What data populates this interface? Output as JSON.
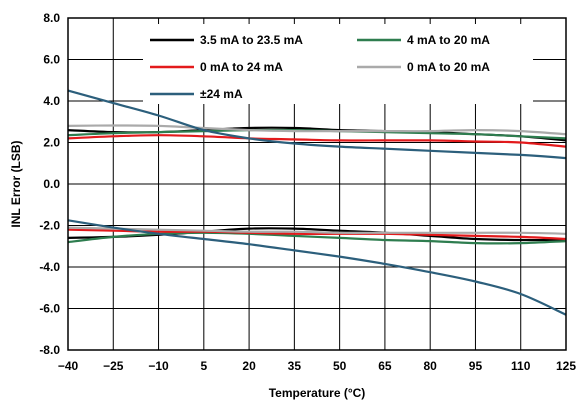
{
  "chart_data": {
    "type": "line",
    "xlabel": "Temperature (°C)",
    "ylabel": "INL Error (LSB)",
    "x_ticks": [
      "−40",
      "−25",
      "−10",
      "5",
      "20",
      "35",
      "50",
      "65",
      "80",
      "95",
      "110",
      "125"
    ],
    "y_ticks": [
      "8.0",
      "6.0",
      "4.0",
      "2.0",
      "0.0",
      "-2.0",
      "-4.0",
      "-6.0",
      "-8.0"
    ],
    "xlim": [
      -40,
      125
    ],
    "ylim": [
      -8,
      8
    ],
    "grid": true,
    "legend_position": "top",
    "series": [
      {
        "name": "3.5 mA to 23.5 mA",
        "color": "#000000",
        "curves": [
          [
            [
              -40,
              2.6
            ],
            [
              -25,
              2.5
            ],
            [
              -10,
              2.5
            ],
            [
              5,
              2.6
            ],
            [
              20,
              2.7
            ],
            [
              35,
              2.7
            ],
            [
              50,
              2.6
            ],
            [
              65,
              2.55
            ],
            [
              80,
              2.5
            ],
            [
              95,
              2.4
            ],
            [
              110,
              2.3
            ],
            [
              125,
              2.1
            ]
          ],
          [
            [
              -40,
              -2.6
            ],
            [
              -25,
              -2.55
            ],
            [
              -10,
              -2.45
            ],
            [
              5,
              -2.3
            ],
            [
              20,
              -2.15
            ],
            [
              35,
              -2.15
            ],
            [
              50,
              -2.25
            ],
            [
              65,
              -2.35
            ],
            [
              80,
              -2.5
            ],
            [
              95,
              -2.65
            ],
            [
              110,
              -2.7
            ],
            [
              125,
              -2.7
            ]
          ]
        ]
      },
      {
        "name": "4 mA to 20 mA",
        "color": "#2e7d4f",
        "curves": [
          [
            [
              -40,
              2.35
            ],
            [
              -25,
              2.45
            ],
            [
              -10,
              2.5
            ],
            [
              5,
              2.55
            ],
            [
              20,
              2.6
            ],
            [
              35,
              2.6
            ],
            [
              50,
              2.55
            ],
            [
              65,
              2.5
            ],
            [
              80,
              2.45
            ],
            [
              95,
              2.4
            ],
            [
              110,
              2.3
            ],
            [
              125,
              2.2
            ]
          ],
          [
            [
              -40,
              -2.8
            ],
            [
              -25,
              -2.55
            ],
            [
              -10,
              -2.4
            ],
            [
              5,
              -2.35
            ],
            [
              20,
              -2.4
            ],
            [
              35,
              -2.5
            ],
            [
              50,
              -2.6
            ],
            [
              65,
              -2.7
            ],
            [
              80,
              -2.75
            ],
            [
              95,
              -2.85
            ],
            [
              110,
              -2.85
            ],
            [
              125,
              -2.75
            ]
          ]
        ]
      },
      {
        "name": "0 mA to 24 mA",
        "color": "#e31a1c",
        "curves": [
          [
            [
              -40,
              2.2
            ],
            [
              -25,
              2.3
            ],
            [
              -10,
              2.35
            ],
            [
              5,
              2.3
            ],
            [
              20,
              2.2
            ],
            [
              35,
              2.15
            ],
            [
              50,
              2.1
            ],
            [
              65,
              2.1
            ],
            [
              80,
              2.1
            ],
            [
              95,
              2.05
            ],
            [
              110,
              2.0
            ],
            [
              125,
              1.8
            ]
          ],
          [
            [
              -40,
              -2.2
            ],
            [
              -25,
              -2.25
            ],
            [
              -10,
              -2.3
            ],
            [
              5,
              -2.3
            ],
            [
              20,
              -2.35
            ],
            [
              35,
              -2.4
            ],
            [
              50,
              -2.4
            ],
            [
              65,
              -2.4
            ],
            [
              80,
              -2.45
            ],
            [
              95,
              -2.5
            ],
            [
              110,
              -2.55
            ],
            [
              125,
              -2.65
            ]
          ]
        ]
      },
      {
        "name": "0 mA to 20 mA",
        "color": "#aaaaaa",
        "curves": [
          [
            [
              -40,
              2.8
            ],
            [
              -25,
              2.82
            ],
            [
              -10,
              2.8
            ],
            [
              5,
              2.7
            ],
            [
              20,
              2.6
            ],
            [
              35,
              2.55
            ],
            [
              50,
              2.55
            ],
            [
              65,
              2.55
            ],
            [
              80,
              2.55
            ],
            [
              95,
              2.6
            ],
            [
              110,
              2.55
            ],
            [
              125,
              2.4
            ]
          ],
          [
            [
              -40,
              -2.1
            ],
            [
              -25,
              -2.15
            ],
            [
              -10,
              -2.2
            ],
            [
              5,
              -2.25
            ],
            [
              20,
              -2.3
            ],
            [
              35,
              -2.3
            ],
            [
              50,
              -2.35
            ],
            [
              65,
              -2.35
            ],
            [
              80,
              -2.35
            ],
            [
              95,
              -2.35
            ],
            [
              110,
              -2.35
            ],
            [
              125,
              -2.4
            ]
          ]
        ]
      },
      {
        "name": "±24 mA",
        "color": "#2c5f7c",
        "curves": [
          [
            [
              -40,
              4.5
            ],
            [
              -25,
              3.9
            ],
            [
              -10,
              3.3
            ],
            [
              5,
              2.6
            ],
            [
              20,
              2.2
            ],
            [
              35,
              1.95
            ],
            [
              50,
              1.8
            ],
            [
              65,
              1.7
            ],
            [
              80,
              1.6
            ],
            [
              95,
              1.5
            ],
            [
              110,
              1.4
            ],
            [
              125,
              1.25
            ]
          ],
          [
            [
              -40,
              -1.75
            ],
            [
              -25,
              -2.1
            ],
            [
              -10,
              -2.4
            ],
            [
              5,
              -2.65
            ],
            [
              20,
              -2.9
            ],
            [
              35,
              -3.2
            ],
            [
              50,
              -3.5
            ],
            [
              65,
              -3.85
            ],
            [
              80,
              -4.25
            ],
            [
              95,
              -4.7
            ],
            [
              110,
              -5.3
            ],
            [
              125,
              -6.3
            ]
          ]
        ]
      }
    ]
  }
}
